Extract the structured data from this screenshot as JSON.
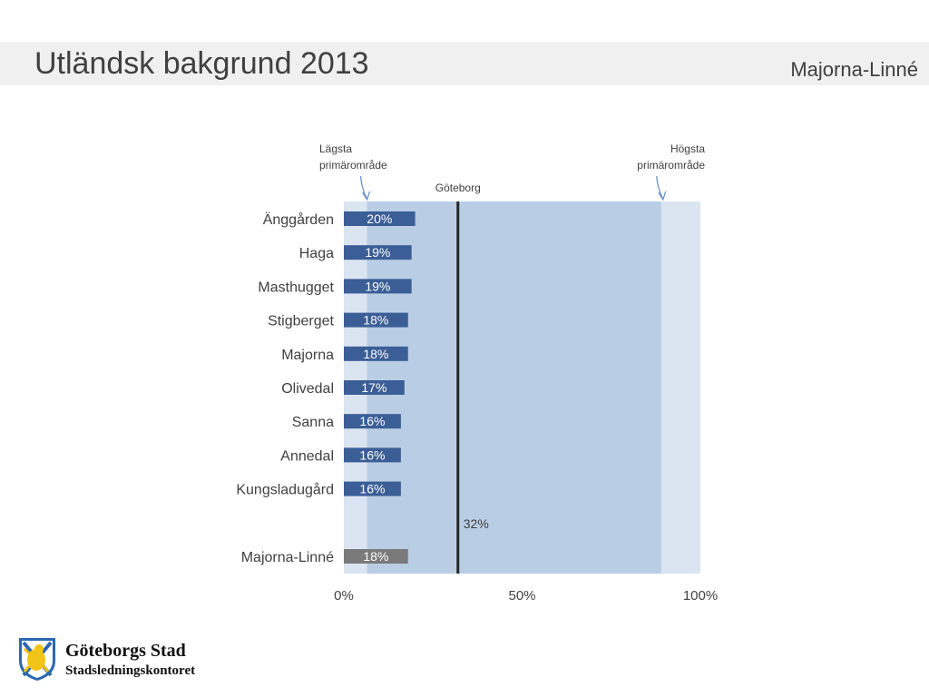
{
  "header": {
    "title": "Utländsk bakgrund 2013",
    "district": "Majorna-Linné"
  },
  "logo": {
    "name": "Göteborgs Stad",
    "department": "Stadsledningskontoret"
  },
  "colors": {
    "bar": "#3b5e96",
    "total_bar": "#7a7a7a",
    "range_band": "#b9cde5",
    "outer_band": "#dbe5f1",
    "reference_line": "#262626",
    "annotation_arrow": "#6f95c7"
  },
  "chart_data": {
    "type": "bar",
    "orientation": "horizontal",
    "categories": [
      "Änggården",
      "Haga",
      "Masthugget",
      "Stigberget",
      "Majorna",
      "Olivedal",
      "Sanna",
      "Annedal",
      "Kungsladugård"
    ],
    "values": [
      20,
      19,
      19,
      18,
      18,
      17,
      16,
      16,
      16
    ],
    "value_labels": [
      "20%",
      "19%",
      "19%",
      "18%",
      "18%",
      "17%",
      "16%",
      "16%",
      "16%"
    ],
    "total": {
      "label": "Majorna-Linné",
      "value": 18,
      "value_label": "18%"
    },
    "reference": {
      "label": "Göteborg",
      "value": 32,
      "value_label": "32%"
    },
    "range": {
      "min": 6.5,
      "min_label": [
        "Lägsta",
        "primärområde"
      ],
      "max": 89,
      "max_label": [
        "Högsta",
        "primärområde"
      ]
    },
    "x_ticks": [
      {
        "value": 0,
        "label": "0%"
      },
      {
        "value": 50,
        "label": "50%"
      },
      {
        "value": 100,
        "label": "100%"
      }
    ],
    "xlim": [
      0,
      100
    ],
    "unit": "%"
  }
}
